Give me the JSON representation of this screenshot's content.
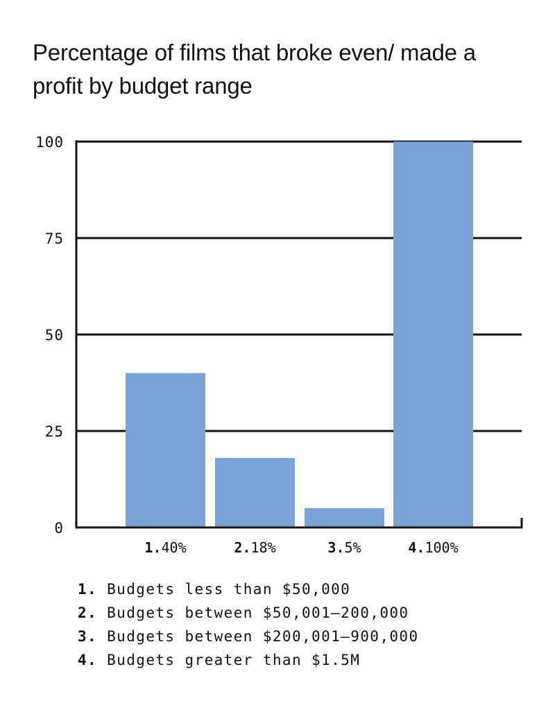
{
  "colors": {
    "bar": "#7aa1d5",
    "axis": "#111111",
    "background": "#ffffff"
  },
  "chart_data": {
    "type": "bar",
    "title": "Percentage of films that broke even/ made a profit by budget range",
    "categories": [
      "1.",
      "2.",
      "3.",
      "4."
    ],
    "values": [
      40,
      18,
      5,
      100
    ],
    "value_labels": [
      "40%",
      "18%",
      "5%",
      "100%"
    ],
    "xlabel": "",
    "ylabel": "",
    "ylim": [
      0,
      100
    ],
    "yticks": [
      0,
      25,
      50,
      75,
      100
    ],
    "ytick_labels": [
      "0",
      "25",
      "50",
      "75",
      "100"
    ],
    "grid": true,
    "legend_position": "bottom"
  },
  "legend": [
    {
      "num": "1.",
      "text": "Budgets less than $50,000"
    },
    {
      "num": "2.",
      "text": "Budgets between $50,001–200,000"
    },
    {
      "num": "3.",
      "text": "Budgets between $200,001–900,000"
    },
    {
      "num": "4.",
      "text": "Budgets greater than $1.5M"
    }
  ]
}
